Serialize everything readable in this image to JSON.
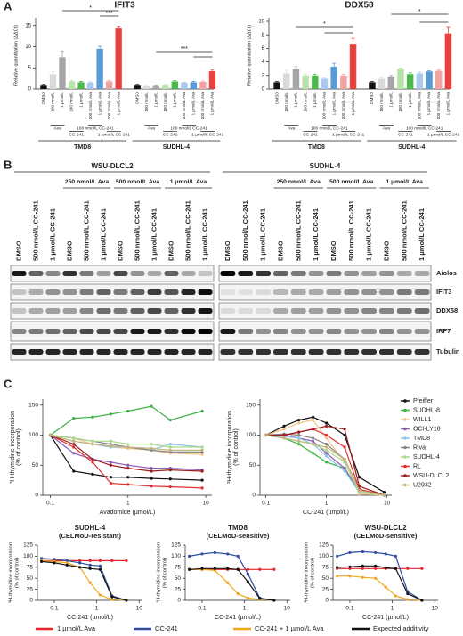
{
  "panel_labels": [
    "A",
    "B",
    "C"
  ],
  "blot": {
    "cell_lines": [
      "WSU-DLCL2",
      "SUDHL-4"
    ],
    "treatments": [
      "250 nmol/L Ava",
      "500 nmol/L Ava",
      "1 µmol/L Ava"
    ],
    "lanes": [
      "DMSO",
      "500 nmol/L CC-241",
      "1 µmol/L CC-241"
    ],
    "proteins": [
      "Aiolos",
      "IFIT3",
      "DDX58",
      "IRF7",
      "Tubulin"
    ]
  },
  "chart_data": [
    {
      "type": "bar",
      "title": "IFIT3",
      "y_label": "Relative quantitation (ΔΔCt)",
      "categories": [
        "DMSO",
        "100 nmol/L",
        "1 µmol/L",
        "100 nmol/L",
        "1 µmol/L",
        "100 nmol/L Ava",
        "1 µmol/L Ava",
        "100 nmol/L Ava",
        "1 µmol/L Ava"
      ],
      "treatment_labels": [
        "Ava",
        "CC-241",
        "100 nmol/L CC-241",
        "1 µmol/L CC-241"
      ],
      "colors": [
        "#111111",
        "#d9d9d9",
        "#a6a6a6",
        "#b6e3a8",
        "#4cb84c",
        "#a9c9ee",
        "#5b9bd5",
        "#f4a3a3",
        "#e8423f"
      ],
      "groups": [
        {
          "name": "TMD8",
          "values": [
            1,
            3.5,
            7.5,
            1.8,
            1.6,
            1.5,
            9.5,
            1.8,
            14.5
          ],
          "errors": [
            0.1,
            0.6,
            1.5,
            0.2,
            0.2,
            0.2,
            0.6,
            0.2,
            0.3
          ]
        },
        {
          "name": "SUDHL-4",
          "values": [
            1,
            0.8,
            0.9,
            1,
            1.8,
            1.5,
            1.6,
            1.7,
            4.2
          ],
          "errors": [
            0.1,
            0.1,
            0.1,
            0.1,
            0.2,
            0.1,
            0.2,
            0.2,
            0.3
          ]
        }
      ],
      "annotations": [
        "*",
        "***",
        "***"
      ],
      "ylim": [
        0,
        16
      ],
      "yticks": [
        0,
        5,
        10,
        15
      ]
    },
    {
      "type": "bar",
      "title": "DDX58",
      "y_label": "Relative quantitation (ΔΔCt)",
      "categories": [
        "DMSO",
        "100 nmol/L",
        "1 µmol/L",
        "100 nmol/L",
        "1 µmol/L",
        "100 nmol/L Ava",
        "1 µmol/L Ava",
        "100 nmol/L Ava",
        "1 µmol/L Ava"
      ],
      "treatment_labels": [
        "Ava",
        "CC-241",
        "100 nmol/L CC-241",
        "1 µmol/L CC-241"
      ],
      "colors": [
        "#111111",
        "#d9d9d9",
        "#a6a6a6",
        "#b6e3a8",
        "#4cb84c",
        "#a9c9ee",
        "#5b9bd5",
        "#f4a3a3",
        "#e8423f"
      ],
      "groups": [
        {
          "name": "TMD8",
          "values": [
            1,
            2.3,
            3,
            2,
            2,
            1.5,
            3.3,
            2,
            6.7
          ],
          "errors": [
            0.1,
            0.5,
            0.3,
            0.2,
            0.2,
            0.1,
            0.5,
            0.2,
            0.8
          ]
        },
        {
          "name": "SUDHL-4",
          "values": [
            1,
            1.5,
            1.8,
            3,
            2.2,
            2.3,
            2.6,
            2.7,
            8.2
          ],
          "errors": [
            0.1,
            0.2,
            0.2,
            0.1,
            0.2,
            0.2,
            0.1,
            0.2,
            1
          ]
        }
      ],
      "annotations": [
        "*",
        "*"
      ],
      "ylim": [
        0,
        10
      ],
      "yticks": [
        0,
        2,
        4,
        6,
        8,
        10
      ]
    },
    {
      "type": "line",
      "x_label": "Avadomide (µmol/L)",
      "y_label": [
        "³H-thymidine incorporation",
        "(% of control)"
      ],
      "x": [
        0.1,
        0.2,
        0.35,
        0.6,
        1,
        2,
        3.5,
        9
      ],
      "log_x": true,
      "xlim": [
        0.08,
        12
      ],
      "xticks": [
        0.1,
        1,
        10
      ],
      "ylim": [
        0,
        160
      ],
      "yticks": [
        0,
        50,
        100,
        150
      ],
      "series": [
        {
          "name": "Pfeiffer",
          "color": "#111111",
          "values": [
            100,
            40,
            35,
            30,
            30,
            28,
            27,
            25
          ]
        },
        {
          "name": "SUDHL-8",
          "color": "#3cb043",
          "values": [
            100,
            128,
            130,
            135,
            140,
            148,
            125,
            140
          ]
        },
        {
          "name": "WILL1",
          "color": "#f5c28a",
          "values": [
            100,
            95,
            85,
            80,
            78,
            75,
            70,
            68
          ]
        },
        {
          "name": "OCI-LY18",
          "color": "#8e5bb5",
          "values": [
            100,
            70,
            60,
            55,
            50,
            45,
            45,
            42
          ]
        },
        {
          "name": "TMD8",
          "color": "#8ec6e8",
          "values": [
            100,
            90,
            85,
            80,
            80,
            75,
            85,
            80
          ]
        },
        {
          "name": "Riva",
          "color": "#888888",
          "values": [
            100,
            95,
            90,
            85,
            80,
            75,
            72,
            72
          ]
        },
        {
          "name": "SUDHL-4",
          "color": "#a8d98a",
          "values": [
            100,
            95,
            90,
            90,
            85,
            85,
            80,
            80
          ]
        },
        {
          "name": "RL",
          "color": "#e03030",
          "values": [
            100,
            80,
            55,
            20,
            18,
            15,
            14,
            12
          ]
        },
        {
          "name": "WSU-DLCL2",
          "color": "#9b1c1c",
          "values": [
            100,
            85,
            60,
            50,
            45,
            40,
            42,
            40
          ]
        },
        {
          "name": "U2932",
          "color": "#c4b47a",
          "values": [
            100,
            90,
            85,
            82,
            80,
            78,
            75,
            75
          ]
        }
      ]
    },
    {
      "type": "line",
      "x_label": "CC-241 (µmol/L)",
      "y_label": [
        "³H-thymidine incorporation",
        "(% of control)"
      ],
      "x": [
        0.1,
        0.2,
        0.35,
        0.6,
        1,
        2,
        3.5,
        9
      ],
      "log_x": true,
      "xlim": [
        0.08,
        12
      ],
      "xticks": [
        0.1,
        1,
        10
      ],
      "ylim": [
        0,
        160
      ],
      "yticks": [
        0,
        50,
        100,
        150
      ],
      "legend": "right",
      "series": [
        {
          "name": "Pfeiffer",
          "color": "#111111",
          "values": [
            100,
            115,
            125,
            130,
            120,
            100,
            30,
            5
          ]
        },
        {
          "name": "SUDHL-8",
          "color": "#3cb043",
          "values": [
            100,
            95,
            85,
            70,
            55,
            45,
            5,
            0
          ]
        },
        {
          "name": "WILL1",
          "color": "#f5c28a",
          "values": [
            100,
            110,
            120,
            125,
            95,
            55,
            2,
            0
          ]
        },
        {
          "name": "OCI-LY18",
          "color": "#8e5bb5",
          "values": [
            100,
            100,
            95,
            90,
            70,
            45,
            5,
            0
          ]
        },
        {
          "name": "TMD8",
          "color": "#8ec6e8",
          "values": [
            100,
            98,
            95,
            85,
            65,
            40,
            5,
            0
          ]
        },
        {
          "name": "Riva",
          "color": "#888888",
          "values": [
            100,
            102,
            100,
            95,
            85,
            60,
            10,
            0
          ]
        },
        {
          "name": "SUDHL-4",
          "color": "#a8d98a",
          "values": [
            100,
            95,
            90,
            85,
            75,
            55,
            5,
            0
          ]
        },
        {
          "name": "RL",
          "color": "#e03030",
          "values": [
            100,
            100,
            105,
            110,
            100,
            80,
            10,
            0
          ]
        },
        {
          "name": "WSU-DLCL2",
          "color": "#9b1c1c",
          "values": [
            100,
            100,
            105,
            110,
            115,
            110,
            15,
            0
          ]
        },
        {
          "name": "U2932",
          "color": "#c4b47a",
          "values": [
            100,
            95,
            90,
            85,
            80,
            60,
            8,
            0
          ]
        }
      ]
    },
    {
      "type": "line",
      "title": "SUDHL-4",
      "subtitle": "(CELMoD-resistant)",
      "x_label": "CC-241 (µmol/L)",
      "y_label": [
        "³H-thymidine incorporation",
        "(% of control)"
      ],
      "x": [
        0.05,
        0.1,
        0.2,
        0.4,
        0.7,
        1.2,
        2.3,
        5
      ],
      "log_x": true,
      "xlim": [
        0.04,
        12
      ],
      "xticks": [
        0.1,
        1,
        10
      ],
      "ylim": [
        0,
        125
      ],
      "yticks": [
        0,
        25,
        50,
        75,
        100,
        125
      ],
      "series": [
        {
          "name": "1 µmol/L Ava",
          "color": "#e8262a",
          "values": [
            90,
            90,
            90,
            90,
            90,
            90,
            90,
            90
          ]
        },
        {
          "name": "CC-241",
          "color": "#2f4ea1",
          "values": [
            95,
            93,
            90,
            85,
            80,
            78,
            10,
            0
          ]
        },
        {
          "name": "CC-241 + 1 µmol/L Ava",
          "color": "#f2a81d",
          "values": [
            90,
            88,
            85,
            75,
            40,
            12,
            2,
            0
          ]
        },
        {
          "name": "Expected additivity",
          "color": "#111111",
          "values": [
            88,
            85,
            80,
            75,
            72,
            70,
            8,
            0
          ]
        }
      ]
    },
    {
      "type": "line",
      "title": "TMD8",
      "subtitle": "(CELMoD-sensitive)",
      "x_label": "CC-241 (µmol/L)",
      "y_label": [
        "³H-thymidine incorporation",
        "(% of control)"
      ],
      "x": [
        0.05,
        0.1,
        0.2,
        0.4,
        0.7,
        1.2,
        2.3,
        5
      ],
      "log_x": true,
      "xlim": [
        0.04,
        12
      ],
      "xticks": [
        0.1,
        1,
        10
      ],
      "ylim": [
        0,
        125
      ],
      "yticks": [
        0,
        25,
        50,
        75,
        100,
        125
      ],
      "legend": "bottom",
      "series": [
        {
          "name": "1 µmol/L Ava",
          "color": "#e8262a",
          "values": [
            70,
            70,
            70,
            70,
            70,
            70,
            70,
            70
          ]
        },
        {
          "name": "CC-241",
          "color": "#2f4ea1",
          "values": [
            100,
            105,
            108,
            105,
            100,
            60,
            5,
            0
          ]
        },
        {
          "name": "CC-241 + 1 µmol/L Ava",
          "color": "#f2a81d",
          "values": [
            70,
            70,
            68,
            40,
            15,
            5,
            2,
            0
          ]
        },
        {
          "name": "Expected additivity",
          "color": "#111111",
          "values": [
            70,
            72,
            72,
            72,
            70,
            42,
            4,
            0
          ]
        }
      ]
    },
    {
      "type": "line",
      "title": "WSU-DLCL2",
      "subtitle": "(CELMoD-sensitive)",
      "x_label": "CC-241 (µmol/L)",
      "y_label": [
        "³H-thymidine incorporation",
        "(% of control)"
      ],
      "x": [
        0.05,
        0.1,
        0.2,
        0.4,
        0.7,
        1.2,
        2.3,
        5
      ],
      "log_x": true,
      "xlim": [
        0.04,
        12
      ],
      "xticks": [
        0.1,
        1,
        10
      ],
      "ylim": [
        0,
        125
      ],
      "yticks": [
        0,
        25,
        50,
        75,
        100,
        125
      ],
      "series": [
        {
          "name": "1 µmol/L Ava",
          "color": "#e8262a",
          "values": [
            72,
            72,
            72,
            72,
            72,
            72,
            72,
            72
          ]
        },
        {
          "name": "CC-241",
          "color": "#2f4ea1",
          "values": [
            100,
            108,
            110,
            108,
            105,
            100,
            20,
            0
          ]
        },
        {
          "name": "CC-241 + 1 µmol/L Ava",
          "color": "#f2a81d",
          "values": [
            55,
            55,
            52,
            50,
            30,
            10,
            2,
            0
          ]
        },
        {
          "name": "Expected additivity",
          "color": "#111111",
          "values": [
            75,
            76,
            78,
            78,
            74,
            72,
            15,
            0
          ]
        }
      ]
    }
  ]
}
